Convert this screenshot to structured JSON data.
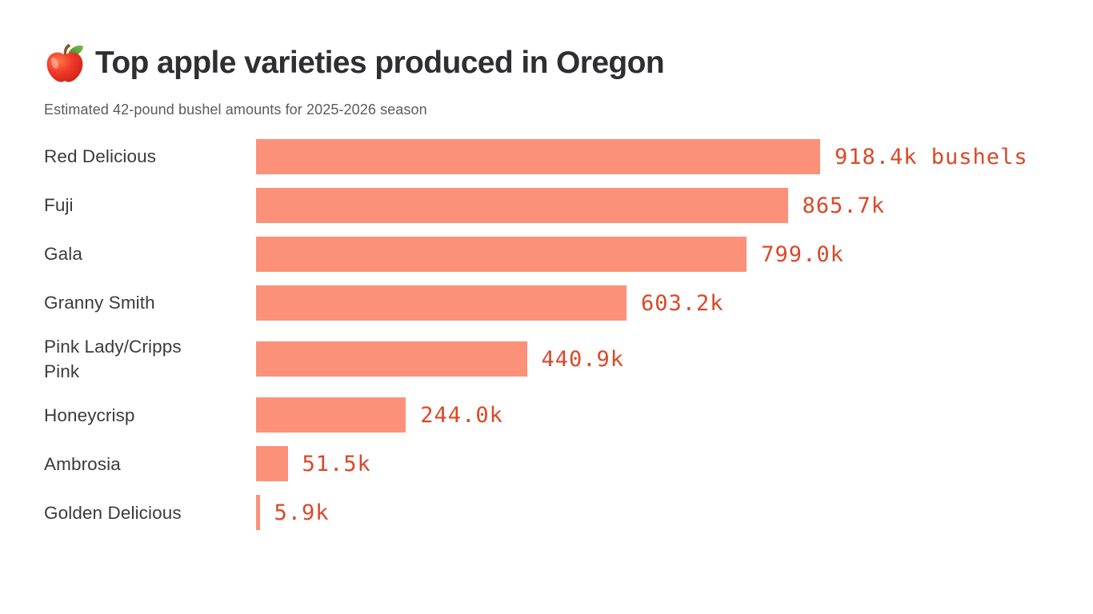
{
  "header": {
    "icon": "red-apple-emoji",
    "title": "Top apple varieties produced in Oregon",
    "subtitle": "Estimated 42-pound bushel amounts for 2025-2026 season"
  },
  "colors": {
    "bar": "#FC9179",
    "value_text": "#DB4827",
    "label_text": "#3B3B3B",
    "title_text": "#2F2F33",
    "subtitle_text": "#5B5B5B",
    "background": "#FFFFFF"
  },
  "chart_data": {
    "type": "bar",
    "orientation": "horizontal",
    "title": "Top apple varieties produced in Oregon",
    "subtitle": "Estimated 42-pound bushel amounts for 2025-2026 season",
    "unit": "thousands of 42-pound bushels",
    "legend": "none",
    "grid": false,
    "xlim": [
      0,
      918.4
    ],
    "categories": [
      "Red Delicious",
      "Fuji",
      "Gala",
      "Granny Smith",
      "Pink Lady/Cripps Pink",
      "Honeycrisp",
      "Ambrosia",
      "Golden Delicious"
    ],
    "display_categories": [
      "Red Delicious",
      "Fuji",
      "Gala",
      "Granny Smith",
      "Pink Lady/Cripps\nPink",
      "Honeycrisp",
      "Ambrosia",
      "Golden Delicious"
    ],
    "values": [
      918.4,
      865.7,
      799.0,
      603.2,
      440.9,
      244.0,
      51.5,
      5.9
    ],
    "value_labels": [
      "918.4k bushels",
      "865.7k",
      "799.0k",
      "603.2k",
      "440.9k",
      "244.0k",
      "51.5k",
      "5.9k"
    ]
  }
}
